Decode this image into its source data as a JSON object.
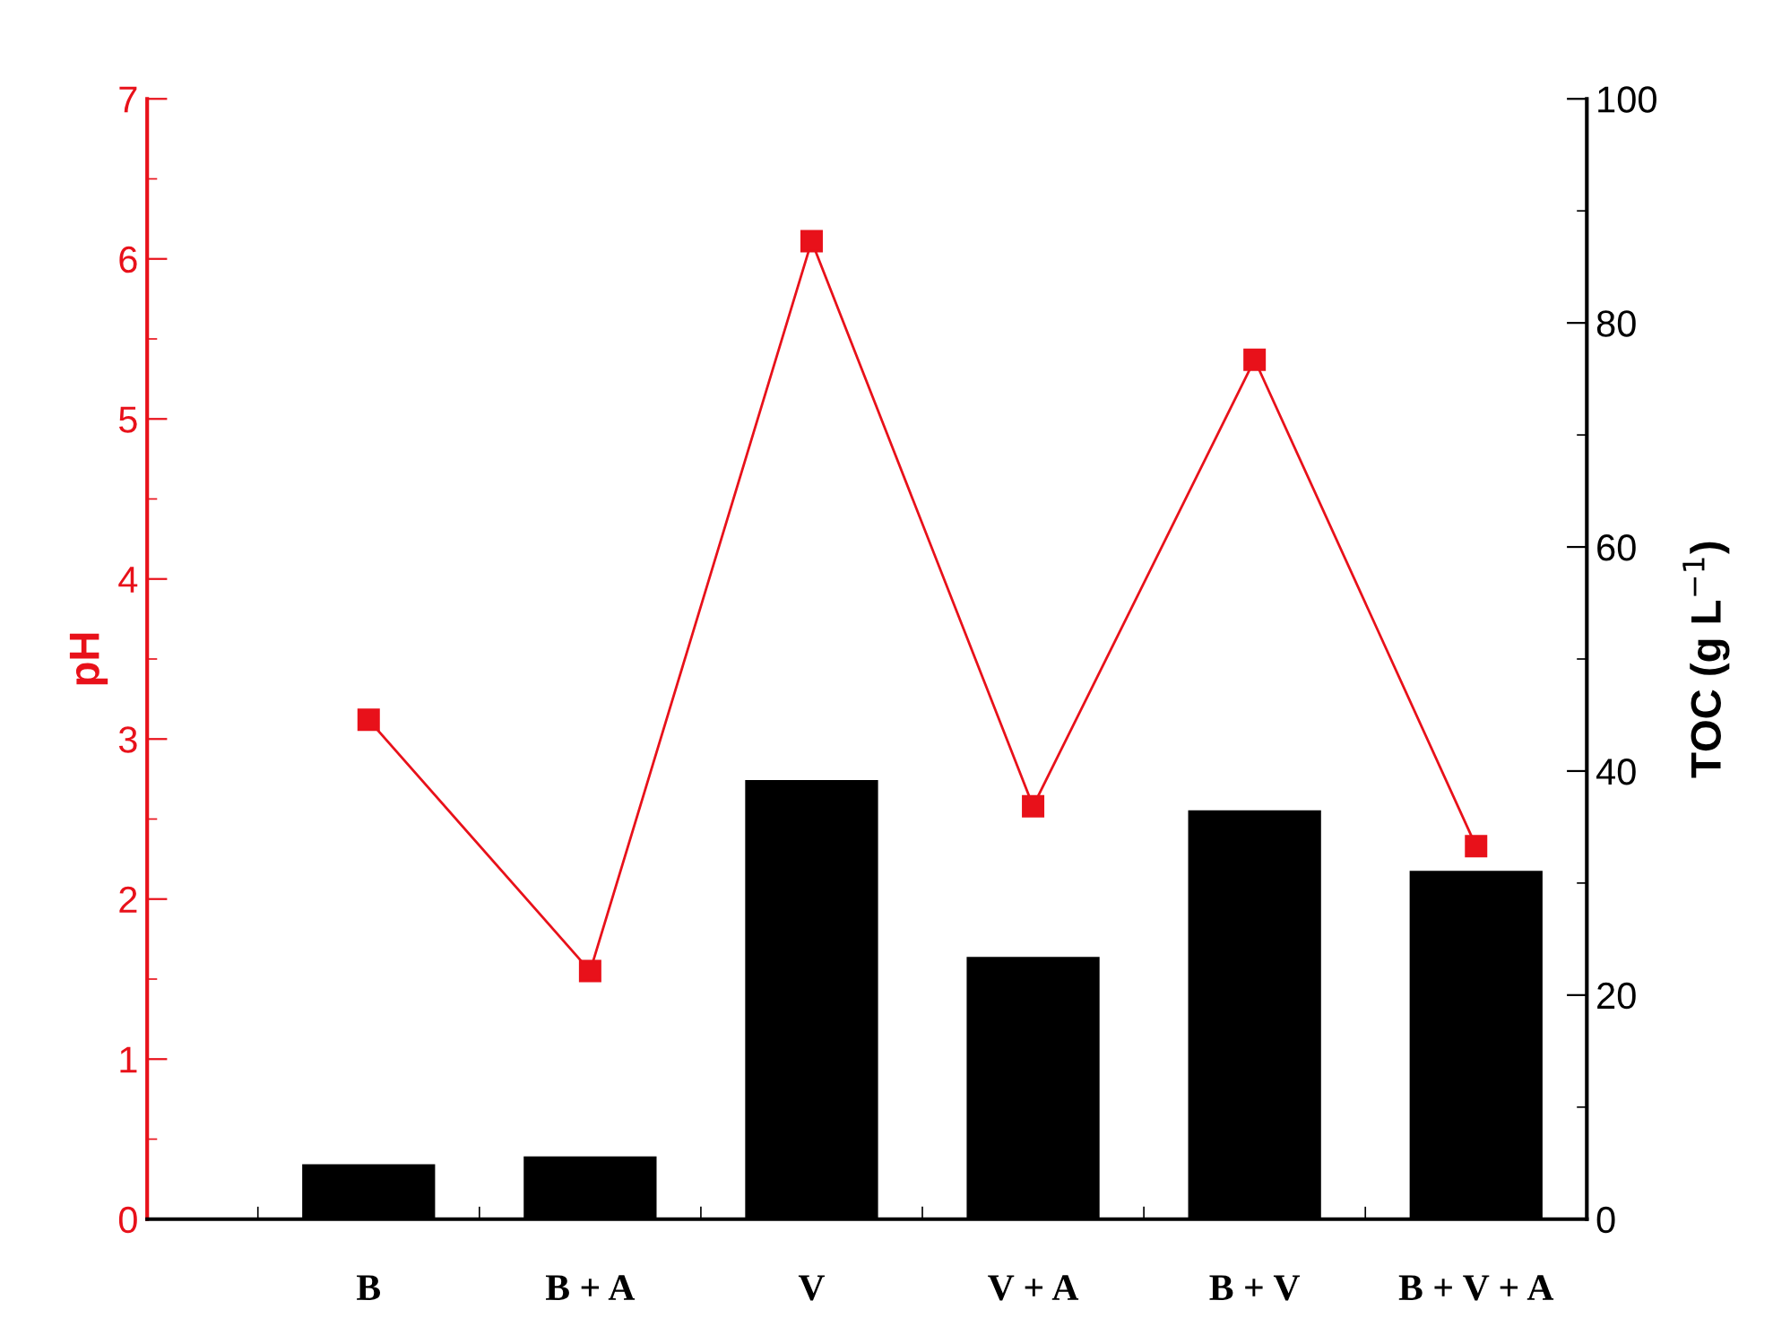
{
  "chart_data": {
    "type": "bar",
    "categories": [
      "B",
      "B + A",
      "V",
      "V + A",
      "B + V",
      "B + V + A"
    ],
    "ylabel": "pH",
    "y2label": "TOC (g L$^{−1}$)",
    "ylim": [
      0,
      7
    ],
    "yticks": [
      0,
      1,
      2,
      3,
      4,
      5,
      6,
      7
    ],
    "y2lim": [
      0,
      100
    ],
    "y2ticks": [
      0,
      20,
      40,
      60,
      80,
      100
    ],
    "grid": false,
    "legend": false,
    "series": [
      {
        "axis": "y2",
        "color": "#000000",
        "values": [
          4.9,
          5.6,
          39.2,
          23.4,
          36.5,
          31.1
        ]
      },
      {
        "type": "line",
        "axis": "y",
        "color": "#e8111a",
        "marker": "square",
        "values": [
          3.12,
          1.55,
          6.11,
          2.58,
          5.37,
          2.33
        ]
      }
    ]
  }
}
